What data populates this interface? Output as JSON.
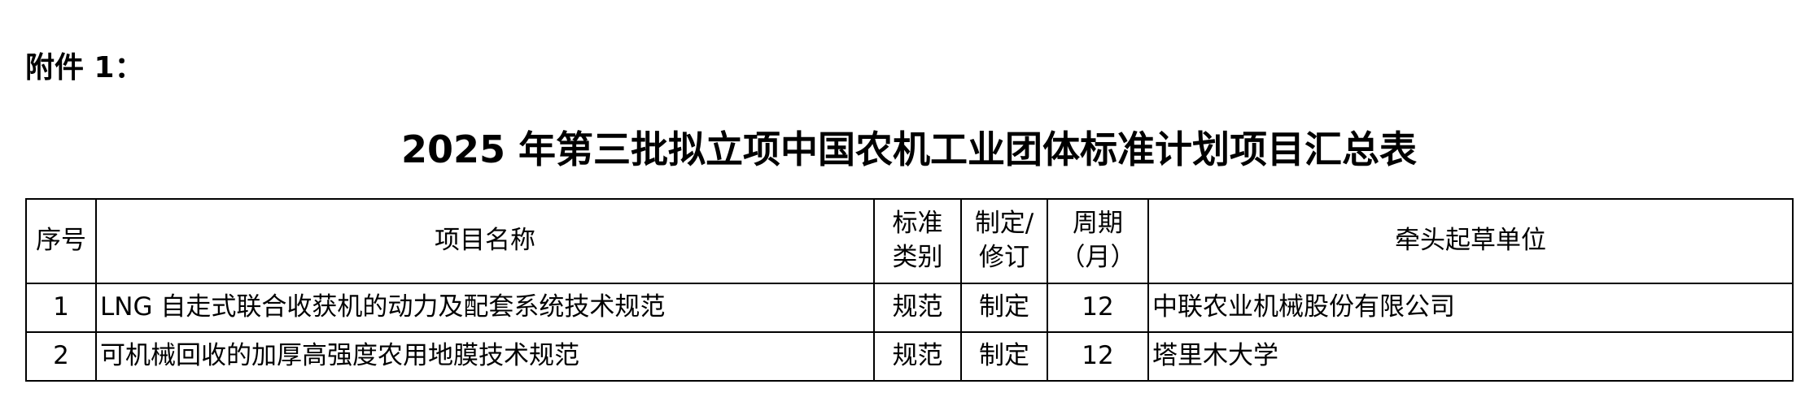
{
  "attachment_label": "附件 1：",
  "title": "2025 年第三批拟立项中国农机工业团体标准计划项目汇总表",
  "table": {
    "headers": [
      {
        "line1": "序号",
        "line2": ""
      },
      {
        "line1": "项目名称",
        "line2": ""
      },
      {
        "line1": "标准",
        "line2": "类别"
      },
      {
        "line1": "制定/",
        "line2": "修订"
      },
      {
        "line1": "周期",
        "line2": "（月）"
      },
      {
        "line1": "牵头起草单位",
        "line2": ""
      }
    ],
    "rows": [
      {
        "no": "1",
        "name": "LNG 自走式联合收获机的动力及配套系统技术规范",
        "category": "规范",
        "type": "制定",
        "period": "12",
        "unit": "中联农业机械股份有限公司"
      },
      {
        "no": "2",
        "name": "可机械回收的加厚高强度农用地膜技术规范",
        "category": "规范",
        "type": "制定",
        "period": "12",
        "unit": "塔里木大学"
      }
    ]
  }
}
